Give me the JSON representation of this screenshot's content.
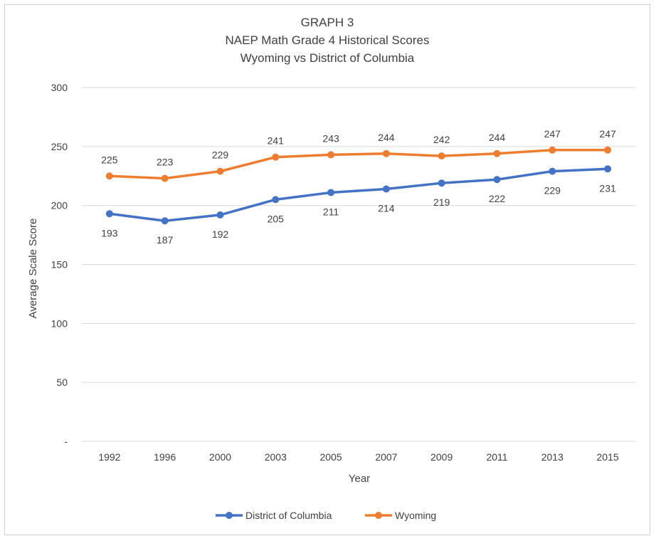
{
  "chart_data": {
    "type": "line",
    "title": [
      "GRAPH 3",
      "NAEP Math Grade 4 Historical Scores",
      "Wyoming vs District of Columbia"
    ],
    "xlabel": "Year",
    "ylabel": "Average Scale Score",
    "categories": [
      "1992",
      "1996",
      "2000",
      "2003",
      "2005",
      "2007",
      "2009",
      "2011",
      "2013",
      "2015"
    ],
    "ylim": [
      0,
      300
    ],
    "yticks": [
      {
        "value": 0,
        "label": "-"
      },
      {
        "value": 50,
        "label": "50"
      },
      {
        "value": 100,
        "label": "100"
      },
      {
        "value": 150,
        "label": "150"
      },
      {
        "value": 200,
        "label": "200"
      },
      {
        "value": 250,
        "label": "250"
      },
      {
        "value": 300,
        "label": "300"
      }
    ],
    "grid": true,
    "legend": "bottom",
    "series": [
      {
        "name": "District of Columbia",
        "color": "#4472C4",
        "label_position": "below",
        "values": [
          193,
          187,
          192,
          205,
          211,
          214,
          219,
          222,
          229,
          231
        ]
      },
      {
        "name": "Wyoming",
        "color": "#ED7D31",
        "label_position": "above",
        "values": [
          225,
          223,
          229,
          241,
          243,
          244,
          242,
          244,
          247,
          247
        ]
      }
    ]
  }
}
